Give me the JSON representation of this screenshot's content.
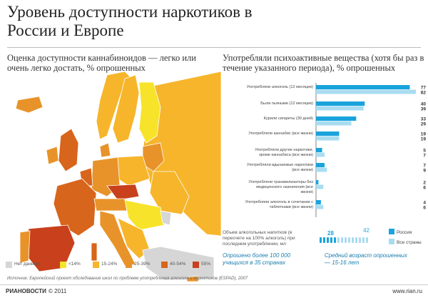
{
  "title": "Уровень доступности наркотиков в России и Европе",
  "left_subtitle": "Оценка доступности каннабиноидов — легко или очень легко достать, % опрошенных",
  "right_subtitle": "Употребляли психоактивные вещества (хотя бы раз в течение указанного периода), % опрошенных",
  "colors": {
    "russia": "#1aa3dc",
    "all_countries": "#a9dcf0",
    "no_data": "#d6d6d6",
    "lt14": "#f7e32a",
    "15_24": "#f6b52b",
    "25_39": "#e8932a",
    "40_54": "#d8651c",
    "gt55": "#c8401c"
  },
  "map": {
    "legend": [
      {
        "label": "Нет данных",
        "color": "#d6d6d6"
      },
      {
        "label": "<14%",
        "color": "#f7e32a"
      },
      {
        "label": "15-24%",
        "color": "#f6b52b"
      },
      {
        "label": "25-39%",
        "color": "#e8932a"
      },
      {
        "label": "40-54%",
        "color": "#d8651c"
      },
      {
        "label": "55%",
        "color": "#c8401c"
      }
    ]
  },
  "chart_data": {
    "type": "bar",
    "categories": [
      "Употребляли алкоголь (12 месяцев)",
      "Были пьяными (12 месяцев)",
      "Курили сигареты (30 дней)",
      "Употребляли каннабис (все жизни)",
      "Употребляли другие наркотики, кроме каннабиса (все жизни)",
      "Употребляли вдыхаемые наркотики (все жизни)",
      "Употребляли транквилизаторы без медицинского назначения (все жизни)",
      "Употребляли алкоголь в сочетании с таблетками (все жизни)"
    ],
    "series": [
      {
        "name": "Россия",
        "values": [
          77,
          40,
          33,
          19,
          5,
          7,
          2,
          4
        ]
      },
      {
        "name": "Все страны",
        "values": [
          82,
          39,
          29,
          19,
          7,
          9,
          6,
          6
        ]
      }
    ],
    "xlim": [
      0,
      82
    ]
  },
  "alcohol_block": {
    "label": "Объем алкогольных напитков (в пересчете на 100% алкоголь) при последнем употреблении, мл",
    "russia_value": "28",
    "all_value": "42"
  },
  "series_legend": {
    "russia": "Россия",
    "all": "Все страны"
  },
  "survey_left": "Опрошено более 100 000 учащихся в 35 странах",
  "survey_right": "Средний возраст опрошенных — 15-16 лет",
  "source": "Источник: Европейский проект обследования школ по проблеме употребления алкоголя и наркотиков (ESPAD), 2007",
  "footer": {
    "brand": "РИАНОВОСТИ",
    "copyright": "© 2011",
    "site": "www.rian.ru"
  }
}
